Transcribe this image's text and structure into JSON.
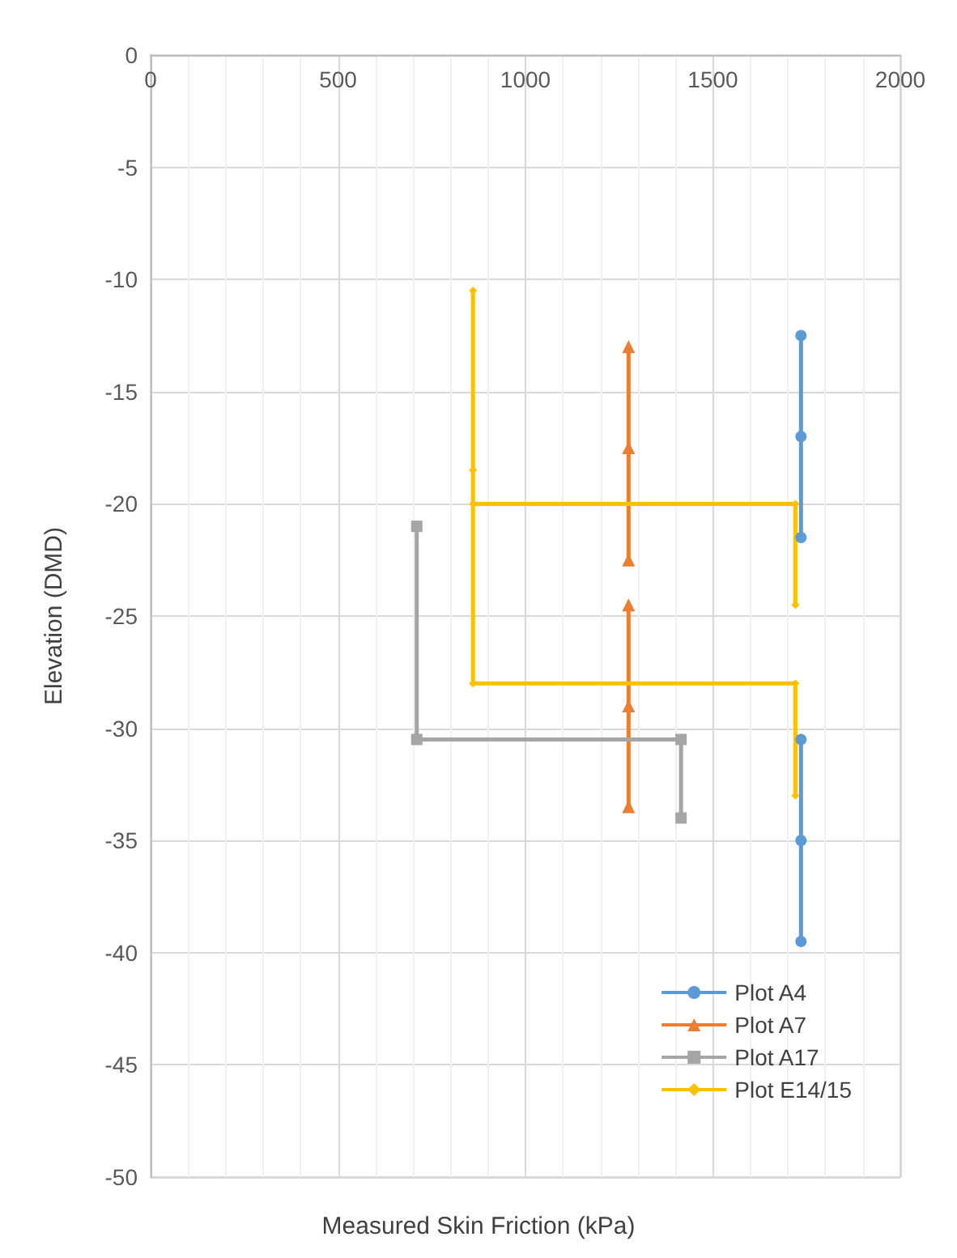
{
  "chart_data": {
    "type": "line",
    "xlabel": "Measured Skin Friction (kPa)",
    "ylabel": "Elevation (DMD)",
    "xlim": [
      0,
      2000
    ],
    "xticks": [
      0,
      500,
      1000,
      1500,
      2000
    ],
    "ylim": [
      -50,
      0
    ],
    "yticks": [
      -50,
      -45,
      -40,
      -35,
      -30,
      -25,
      -20,
      -15,
      -10,
      -5,
      0
    ],
    "grid": true,
    "legend": "bottom right",
    "series": [
      {
        "name": "Plot A4",
        "color": "#5b9bd5",
        "marker": "circle",
        "x": [
          1735,
          1735,
          1735,
          null,
          1735,
          1735,
          1735
        ],
        "values": [
          -12.5,
          -17,
          -21.5,
          null,
          -30.5,
          -35,
          -39.5
        ]
      },
      {
        "name": "Plot A7",
        "color": "#ed7d31",
        "marker": "triangle",
        "x": [
          1275,
          1275,
          1275,
          null,
          1275,
          1275,
          1275
        ],
        "values": [
          -13,
          -17.5,
          -22.5,
          null,
          -24.5,
          -29,
          -33.5
        ]
      },
      {
        "name": "Plot A17",
        "color": "#a5a5a5",
        "marker": "square",
        "x": [
          710,
          710,
          1415,
          1415
        ],
        "values": [
          -21,
          -30.5,
          -30.5,
          -34
        ]
      },
      {
        "name": "Plot E14/15",
        "color": "#ffc000",
        "marker": "diamond",
        "x": [
          860,
          860,
          860,
          1720,
          1720,
          null,
          860,
          1720,
          1720
        ],
        "values": [
          -10.5,
          -18.5,
          -28,
          -28,
          -33,
          null,
          -20,
          -20,
          -24.5
        ]
      }
    ]
  }
}
